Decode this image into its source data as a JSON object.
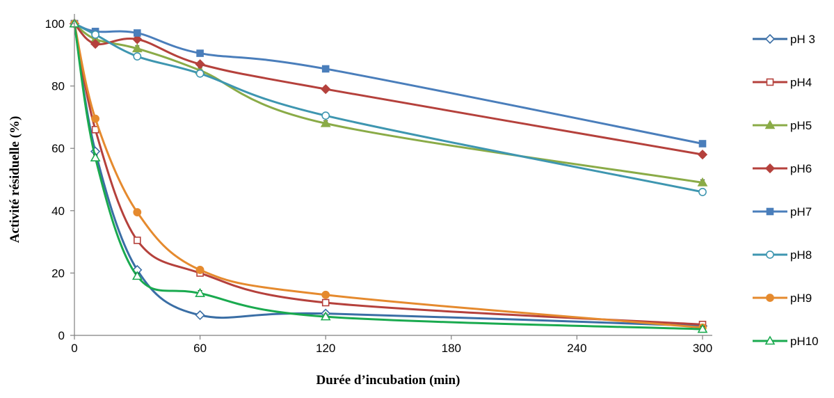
{
  "chart_data": {
    "type": "line",
    "title": "",
    "xlabel": "Durée d’incubation (min)",
    "ylabel": "Activité résiduelle (%)",
    "xlim": [
      0,
      300
    ],
    "ylim": [
      0,
      100
    ],
    "xticks": [
      0,
      60,
      120,
      180,
      240,
      300
    ],
    "yticks": [
      0,
      20,
      40,
      60,
      80,
      100
    ],
    "grid": false,
    "legend": "right",
    "x": [
      0,
      10,
      30,
      60,
      120,
      300
    ],
    "series": [
      {
        "name": "pH 3",
        "color": "#3a6ea5",
        "marker": "diamond-open",
        "values": [
          100,
          59,
          21,
          6.5,
          7,
          3
        ]
      },
      {
        "name": "pH4",
        "color": "#b5413c",
        "marker": "square-open",
        "values": [
          100,
          66,
          30.5,
          20,
          10.5,
          3.5
        ]
      },
      {
        "name": "pH5",
        "color": "#8aab47",
        "marker": "triangle-filled",
        "values": [
          100,
          95,
          92,
          85,
          68,
          49
        ]
      },
      {
        "name": "pH6",
        "color": "#b5413c",
        "marker": "diamond-filled",
        "values": [
          100,
          93.5,
          95,
          87,
          79,
          58
        ]
      },
      {
        "name": "pH7",
        "color": "#4a7ebb",
        "marker": "square-filled",
        "values": [
          100,
          97.5,
          97,
          90.5,
          85.5,
          61.5
        ]
      },
      {
        "name": "pH8",
        "color": "#3e96b0",
        "marker": "circle-open",
        "values": [
          100,
          96.5,
          89.5,
          84,
          70.5,
          46
        ]
      },
      {
        "name": "pH9",
        "color": "#e58a2e",
        "marker": "circle-filled",
        "values": [
          100,
          69.5,
          39.5,
          21,
          13,
          2.5
        ]
      },
      {
        "name": "pH10",
        "color": "#1aaa4f",
        "marker": "triangle-open",
        "values": [
          100,
          57,
          19,
          13.5,
          6,
          2
        ]
      }
    ]
  }
}
